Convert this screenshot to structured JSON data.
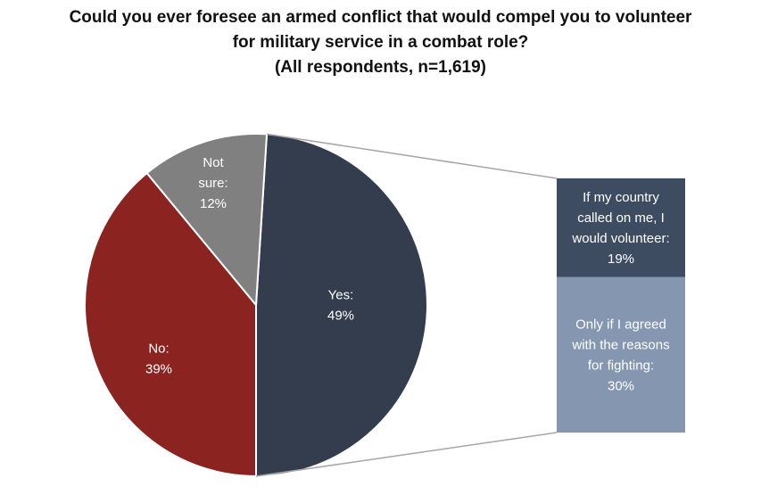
{
  "chart_data": {
    "type": "pie",
    "title": [
      "Could you ever foresee an armed conflict that would compel you to volunteer",
      "for military service in a combat role?",
      "(All respondents, n=1,619)"
    ],
    "slices": [
      {
        "label": [
          "Yes:",
          "49%"
        ],
        "value": 49,
        "color": "#333d4e"
      },
      {
        "label": [
          "No:",
          "39%"
        ],
        "value": 39,
        "color": "#8b2320"
      },
      {
        "label": [
          "Not",
          "sure:",
          "12%"
        ],
        "value": 12,
        "color": "#808080"
      }
    ],
    "breakdown": {
      "of_slice": "Yes:",
      "segments": [
        {
          "label": [
            "If my country",
            "called on me, I",
            "would volunteer:",
            "19%"
          ],
          "value": 19,
          "color": "#3e4c61"
        },
        {
          "label": [
            "Only if I agreed",
            "with the reasons",
            "for fighting:",
            "30%"
          ],
          "value": 30,
          "color": "#8496b0"
        }
      ]
    },
    "label_color": "#ffffff",
    "connector_color": "#a6a6a6"
  }
}
